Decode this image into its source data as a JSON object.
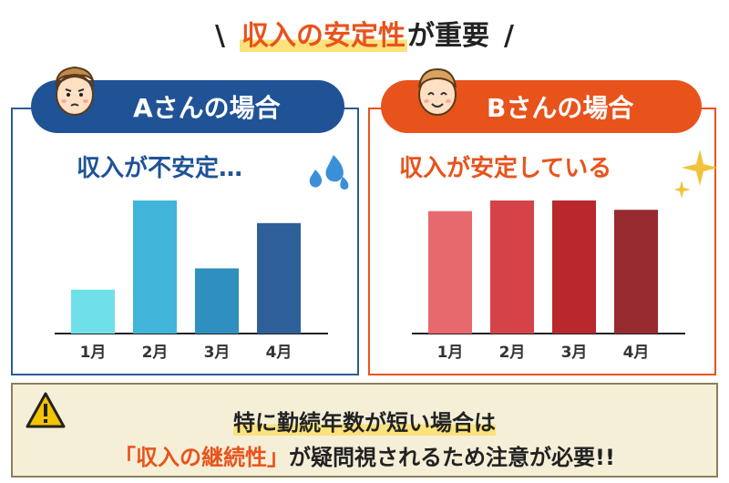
{
  "title": {
    "slash_left": "\\",
    "highlight": "収入の安定性",
    "rest": "が重要",
    "slash_right": "/"
  },
  "panel_a": {
    "label": "Aさんの場合",
    "subtitle": "収入が不安定…",
    "months": [
      "1月",
      "2月",
      "3月",
      "4月"
    ],
    "values": [
      0.33,
      1.0,
      0.49,
      0.83
    ],
    "colors": [
      "#6fe0ea",
      "#41b4d9",
      "#2f8fbf",
      "#2e5f99"
    ]
  },
  "panel_b": {
    "label": "Bさんの場合",
    "subtitle": "収入が安定している",
    "months": [
      "1月",
      "2月",
      "3月",
      "4月"
    ],
    "values": [
      0.92,
      1.0,
      1.0,
      0.93
    ],
    "colors": [
      "#e8696d",
      "#d54348",
      "#b9282d",
      "#972b30"
    ]
  },
  "note": {
    "line1": "特に勤続年数が短い場合は",
    "line2_emphasis": "「収入の継続性」",
    "line2_rest": "が疑問視されるため注意が必要!!"
  }
}
